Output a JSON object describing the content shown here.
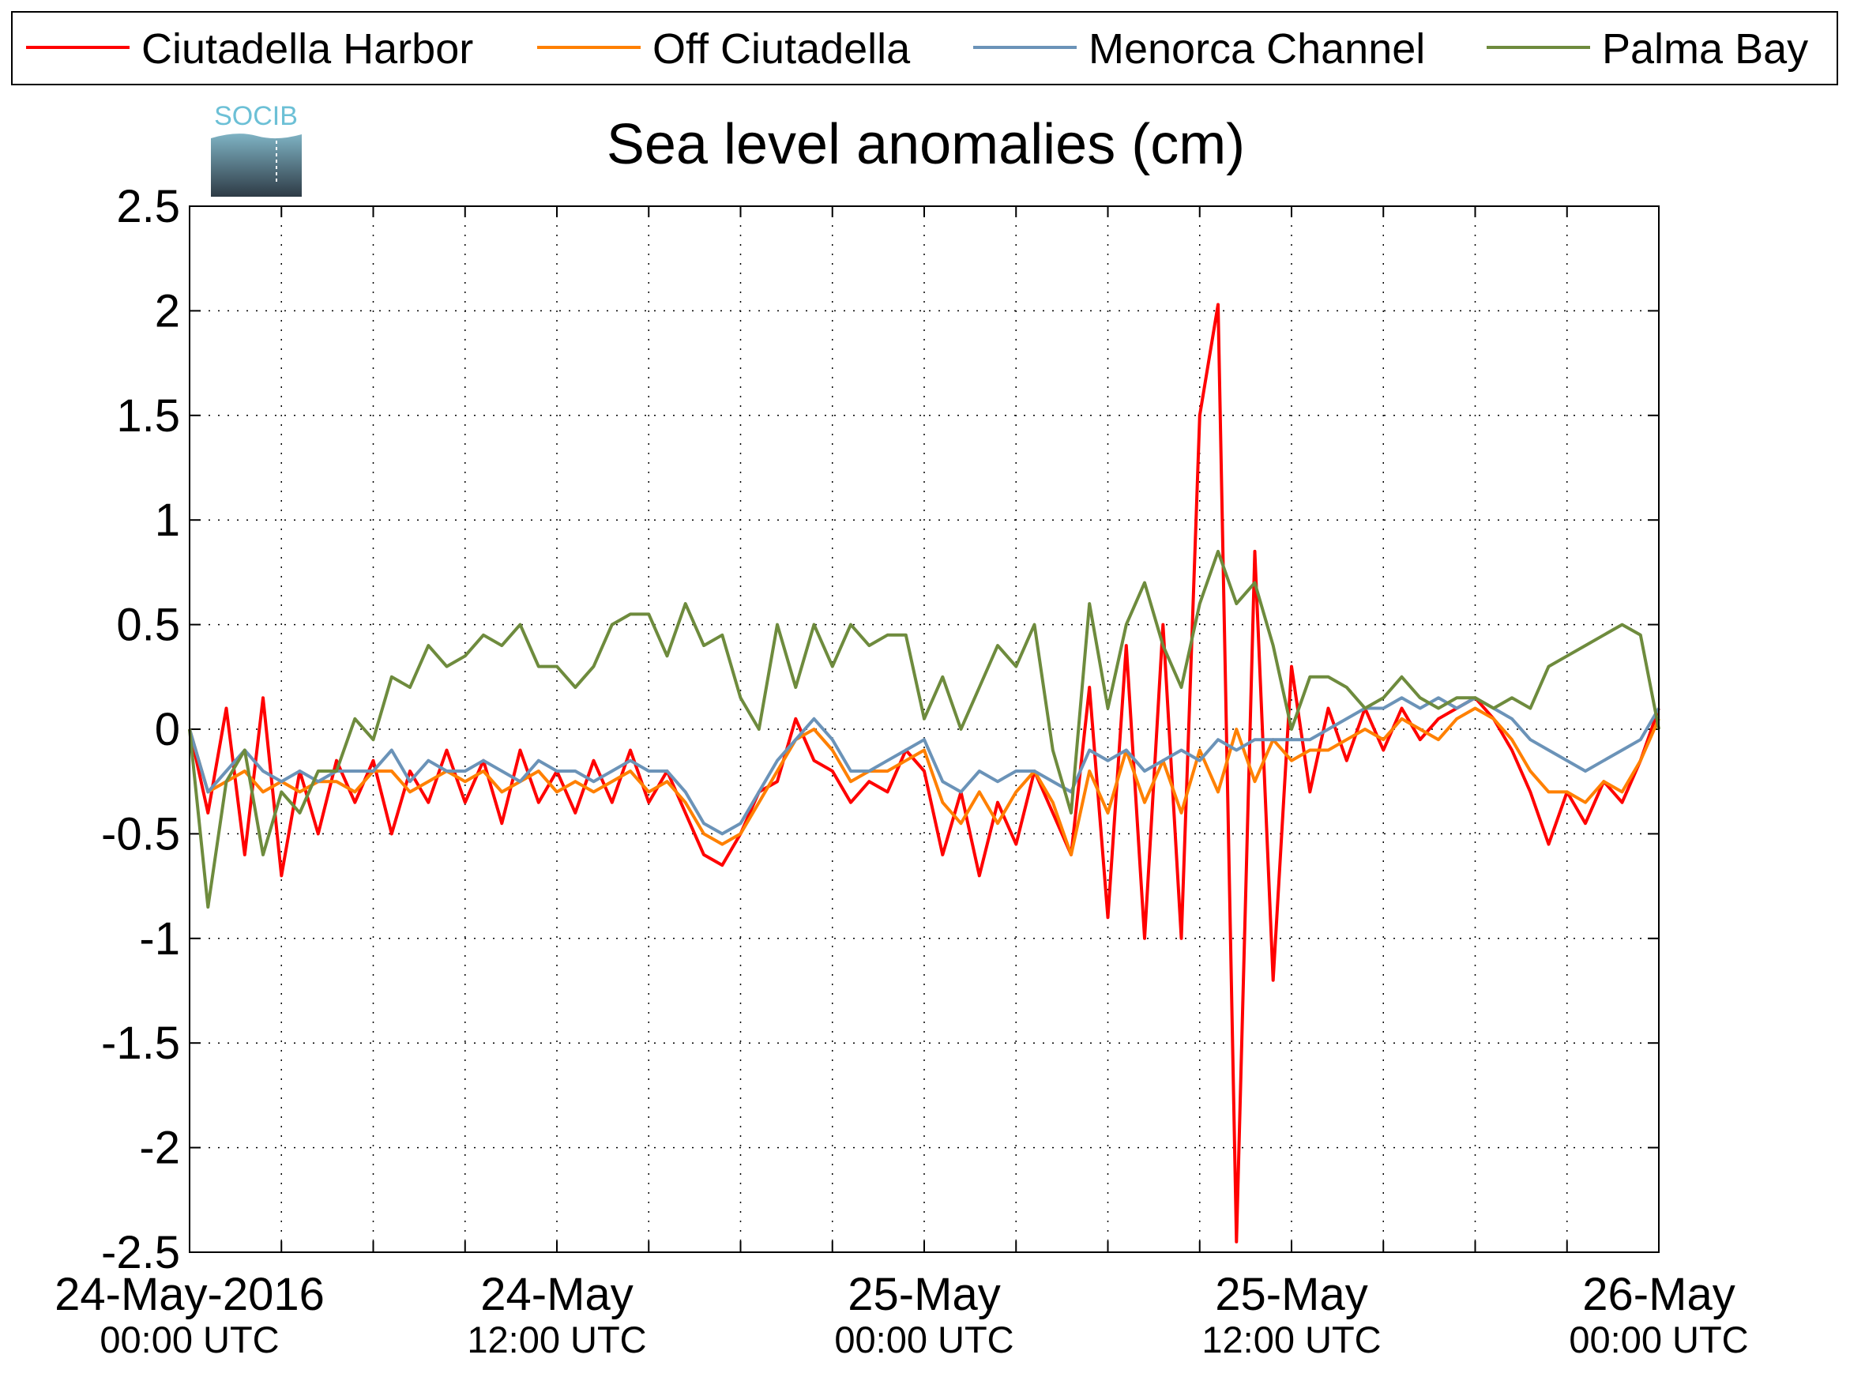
{
  "chart_data": {
    "type": "line",
    "title": "Sea level anomalies (cm)",
    "logo": "SOCIB",
    "x": [
      0,
      0.6,
      1.2,
      1.8,
      2.4,
      3,
      3.6,
      4.2,
      4.8,
      5.4,
      6,
      6.6,
      7.2,
      7.8,
      8.4,
      9,
      9.6,
      10.2,
      10.8,
      11.4,
      12,
      12.6,
      13.2,
      13.8,
      14.4,
      15,
      15.6,
      16.2,
      16.8,
      17.4,
      18,
      18.6,
      19.2,
      19.8,
      20.4,
      21,
      21.6,
      22.2,
      22.8,
      23.4,
      24,
      24.6,
      25.2,
      25.8,
      26.4,
      27,
      27.6,
      28.2,
      28.8,
      29.4,
      30,
      30.6,
      31.2,
      31.8,
      32.4,
      33,
      33.6,
      34.2,
      34.8,
      35.4,
      36,
      36.6,
      37.2,
      37.8,
      38.4,
      39,
      39.6,
      40.2,
      40.8,
      41.4,
      42,
      42.6,
      43.2,
      43.8,
      44.4,
      45,
      45.6,
      46.2,
      46.8,
      47.4,
      48
    ],
    "series": [
      {
        "name": "Ciutadella Harbor",
        "color": "#ff0000",
        "values": [
          0,
          -0.4,
          0.1,
          -0.6,
          0.15,
          -0.7,
          -0.2,
          -0.5,
          -0.15,
          -0.35,
          -0.15,
          -0.5,
          -0.2,
          -0.35,
          -0.1,
          -0.35,
          -0.15,
          -0.45,
          -0.1,
          -0.35,
          -0.2,
          -0.4,
          -0.15,
          -0.35,
          -0.1,
          -0.35,
          -0.2,
          -0.4,
          -0.6,
          -0.65,
          -0.5,
          -0.3,
          -0.25,
          0.05,
          -0.15,
          -0.2,
          -0.35,
          -0.25,
          -0.3,
          -0.1,
          -0.2,
          -0.6,
          -0.3,
          -0.7,
          -0.35,
          -0.55,
          -0.2,
          -0.4,
          -0.6,
          0.2,
          -0.9,
          0.4,
          -1.0,
          0.5,
          -1.0,
          1.5,
          2.03,
          -2.45,
          0.85,
          -1.2,
          0.3,
          -0.3,
          0.1,
          -0.15,
          0.1,
          -0.1,
          0.1,
          -0.05,
          0.05,
          0.1,
          0.15,
          0.05,
          -0.1,
          -0.3,
          -0.55,
          -0.3,
          -0.45,
          -0.25,
          -0.35,
          -0.15,
          0.1
        ]
      },
      {
        "name": "Off Ciutadella",
        "color": "#ff8000",
        "values": [
          0,
          -0.3,
          -0.25,
          -0.2,
          -0.3,
          -0.25,
          -0.3,
          -0.25,
          -0.25,
          -0.3,
          -0.2,
          -0.2,
          -0.3,
          -0.25,
          -0.2,
          -0.25,
          -0.2,
          -0.3,
          -0.25,
          -0.2,
          -0.3,
          -0.25,
          -0.3,
          -0.25,
          -0.2,
          -0.3,
          -0.25,
          -0.35,
          -0.5,
          -0.55,
          -0.5,
          -0.35,
          -0.2,
          -0.05,
          0.0,
          -0.1,
          -0.25,
          -0.2,
          -0.2,
          -0.15,
          -0.1,
          -0.35,
          -0.45,
          -0.3,
          -0.45,
          -0.3,
          -0.2,
          -0.35,
          -0.6,
          -0.2,
          -0.4,
          -0.1,
          -0.35,
          -0.15,
          -0.4,
          -0.1,
          -0.3,
          0.0,
          -0.25,
          -0.05,
          -0.15,
          -0.1,
          -0.1,
          -0.05,
          0.0,
          -0.05,
          0.05,
          0.0,
          -0.05,
          0.05,
          0.1,
          0.05,
          -0.05,
          -0.2,
          -0.3,
          -0.3,
          -0.35,
          -0.25,
          -0.3,
          -0.15,
          0.05
        ]
      },
      {
        "name": "Menorca Channel",
        "color": "#6b93b8",
        "values": [
          0,
          -0.3,
          -0.2,
          -0.1,
          -0.2,
          -0.25,
          -0.2,
          -0.25,
          -0.2,
          -0.2,
          -0.2,
          -0.1,
          -0.25,
          -0.15,
          -0.2,
          -0.2,
          -0.15,
          -0.2,
          -0.25,
          -0.15,
          -0.2,
          -0.2,
          -0.25,
          -0.2,
          -0.15,
          -0.2,
          -0.2,
          -0.3,
          -0.45,
          -0.5,
          -0.45,
          -0.3,
          -0.15,
          -0.05,
          0.05,
          -0.05,
          -0.2,
          -0.2,
          -0.15,
          -0.1,
          -0.05,
          -0.25,
          -0.3,
          -0.2,
          -0.25,
          -0.2,
          -0.2,
          -0.25,
          -0.3,
          -0.1,
          -0.15,
          -0.1,
          -0.2,
          -0.15,
          -0.1,
          -0.15,
          -0.05,
          -0.1,
          -0.05,
          -0.05,
          -0.05,
          -0.05,
          0.0,
          0.05,
          0.1,
          0.1,
          0.15,
          0.1,
          0.15,
          0.1,
          0.15,
          0.1,
          0.05,
          -0.05,
          -0.1,
          -0.15,
          -0.2,
          -0.15,
          -0.1,
          -0.05,
          0.1
        ]
      },
      {
        "name": "Palma Bay",
        "color": "#6e8b3d",
        "values": [
          0,
          -0.85,
          -0.25,
          -0.1,
          -0.6,
          -0.3,
          -0.4,
          -0.2,
          -0.2,
          0.05,
          -0.05,
          0.25,
          0.2,
          0.4,
          0.3,
          0.35,
          0.45,
          0.4,
          0.5,
          0.3,
          0.3,
          0.2,
          0.3,
          0.5,
          0.55,
          0.55,
          0.35,
          0.6,
          0.4,
          0.45,
          0.15,
          0.0,
          0.5,
          0.2,
          0.5,
          0.3,
          0.5,
          0.4,
          0.45,
          0.45,
          0.05,
          0.25,
          0.0,
          0.2,
          0.4,
          0.3,
          0.5,
          -0.1,
          -0.4,
          0.6,
          0.1,
          0.5,
          0.7,
          0.4,
          0.2,
          0.6,
          0.85,
          0.6,
          0.7,
          0.4,
          0.0,
          0.25,
          0.25,
          0.2,
          0.1,
          0.15,
          0.25,
          0.15,
          0.1,
          0.15,
          0.15,
          0.1,
          0.15,
          0.1,
          0.3,
          0.35,
          0.4,
          0.45,
          0.5,
          0.45,
          0.0
        ]
      }
    ],
    "xlim": [
      0,
      48
    ],
    "xticks": [
      {
        "value": 0,
        "label": [
          "24-May-2016",
          "00:00 UTC"
        ]
      },
      3,
      6,
      9,
      {
        "value": 12,
        "label": [
          "24-May",
          "12:00 UTC"
        ]
      },
      15,
      18,
      21,
      {
        "value": 24,
        "label": [
          "25-May",
          "00:00 UTC"
        ]
      },
      27,
      30,
      33,
      {
        "value": 36,
        "label": [
          "25-May",
          "12:00 UTC"
        ]
      },
      39,
      42,
      45,
      {
        "value": 48,
        "label": [
          "26-May",
          "00:00 UTC"
        ]
      }
    ],
    "ylim": [
      -2.5,
      2.5
    ],
    "yticks": [
      -2.5,
      -2,
      -1.5,
      -1,
      -0.5,
      0,
      0.5,
      1,
      1.5,
      2,
      2.5
    ],
    "grid": true,
    "legend": "top"
  }
}
